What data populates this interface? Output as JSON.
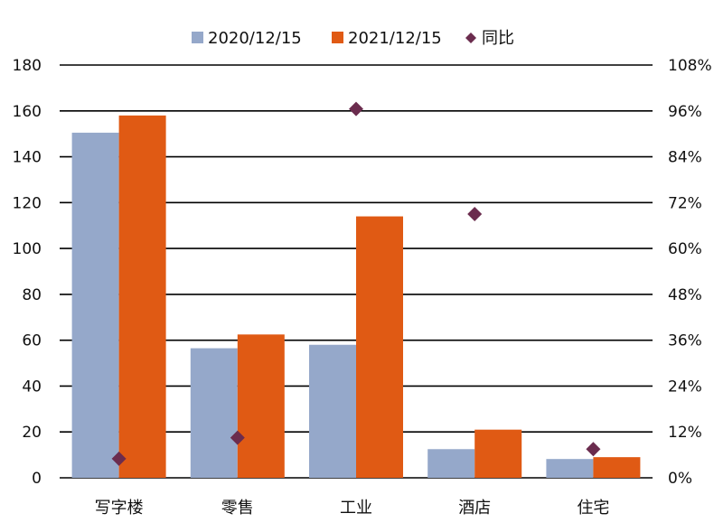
{
  "chart_data": {
    "type": "bar",
    "categories": [
      "写字楼",
      "零售",
      "工业",
      "酒店",
      "住宅"
    ],
    "series": [
      {
        "name": "2020/12/15",
        "type": "bar",
        "axis": "left",
        "color": "#95a8ca",
        "values": [
          150.5,
          56.5,
          58,
          12.5,
          8.2
        ]
      },
      {
        "name": "2021/12/15",
        "type": "bar",
        "axis": "left",
        "color": "#e05a14",
        "values": [
          158,
          62.5,
          114,
          21,
          9
        ]
      },
      {
        "name": "同比",
        "type": "scatter",
        "marker": "diamond",
        "axis": "right",
        "color": "#6b2c4e",
        "values": [
          5,
          10.5,
          96.5,
          69,
          7.5
        ]
      }
    ],
    "yleft": {
      "ylim": [
        0,
        180
      ],
      "ticks": [
        "0",
        "20",
        "40",
        "60",
        "80",
        "100",
        "120",
        "140",
        "160",
        "180"
      ]
    },
    "yright": {
      "ylim": [
        0,
        108
      ],
      "ticks": [
        "0%",
        "12%",
        "24%",
        "36%",
        "48%",
        "60%",
        "72%",
        "84%",
        "96%",
        "108%"
      ]
    },
    "grid": true,
    "legend": "top-center",
    "title": "",
    "xlabel": "",
    "ylabel": ""
  }
}
